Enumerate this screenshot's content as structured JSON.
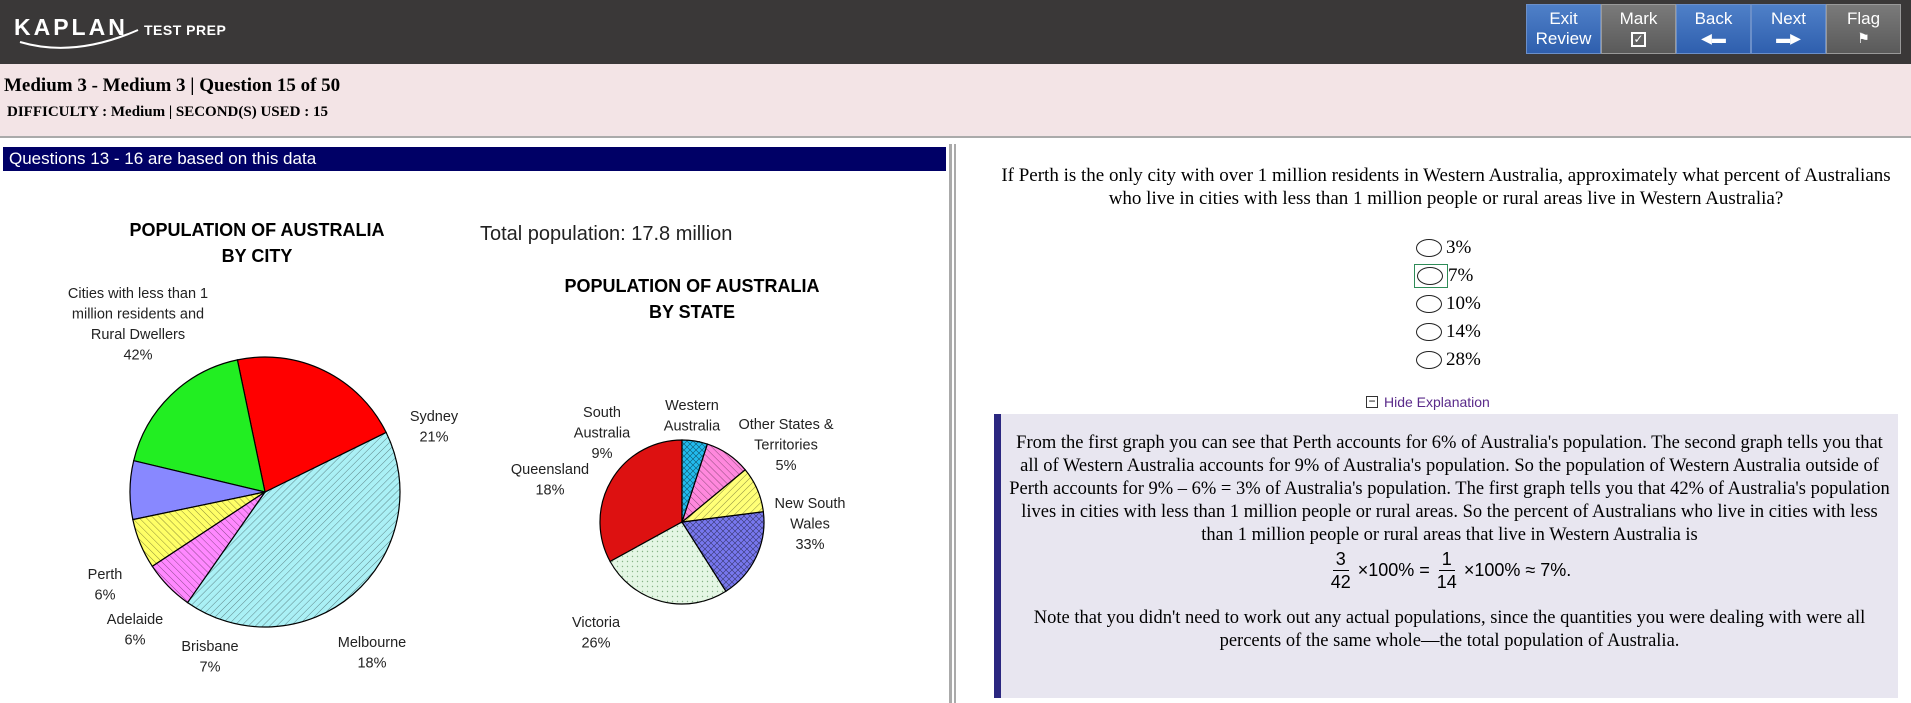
{
  "brand": {
    "logo": "KAPLAN",
    "tagline": "TEST PREP"
  },
  "nav": [
    {
      "line1": "Exit",
      "line2": "Review",
      "icon": ""
    },
    {
      "line1": "Mark",
      "line2": "",
      "icon": "checkbox-icon"
    },
    {
      "line1": "Back",
      "line2": "",
      "icon": "arrow-left-icon"
    },
    {
      "line1": "Next",
      "line2": "",
      "icon": "arrow-right-icon"
    },
    {
      "line1": "Flag",
      "line2": "",
      "icon": "flag-icon"
    }
  ],
  "header": {
    "title": "Medium 3 - Medium 3 | Question  15 of 50",
    "subtitle": "DIFFICULTY : Medium | SECOND(S) USED : 15"
  },
  "banner": "Questions 13 - 16 are based on this data",
  "total_population": "Total population: 17.8 million",
  "chart_data": [
    {
      "type": "pie",
      "title": "POPULATION OF AUSTRALIA BY CITY",
      "title_lines": [
        "POPULATION OF AUSTRALIA",
        "BY CITY"
      ],
      "slices": [
        {
          "label": "Cities with less than 1 million residents and Rural Dwellers",
          "label_lines": [
            "Cities with less than 1",
            "million residents and",
            "Rural Dwellers"
          ],
          "value": 42,
          "pct_label": "42%",
          "color": "#aaf0f5"
        },
        {
          "label": "Sydney",
          "label_lines": [
            "Sydney"
          ],
          "value": 21,
          "pct_label": "21%",
          "color": "#ff0000"
        },
        {
          "label": "Melbourne",
          "label_lines": [
            "Melbourne"
          ],
          "value": 18,
          "pct_label": "18%",
          "color": "#22ee22"
        },
        {
          "label": "Brisbane",
          "label_lines": [
            "Brisbane"
          ],
          "value": 7,
          "pct_label": "7%",
          "color": "#8888ff"
        },
        {
          "label": "Adelaide",
          "label_lines": [
            "Adelaide"
          ],
          "value": 6,
          "pct_label": "6%",
          "color": "#ffff66"
        },
        {
          "label": "Perth",
          "label_lines": [
            "Perth"
          ],
          "value": 6,
          "pct_label": "6%",
          "color": "#ff88ff"
        }
      ]
    },
    {
      "type": "pie",
      "title": "POPULATION OF AUSTRALIA BY STATE",
      "title_lines": [
        "POPULATION OF AUSTRALIA",
        "BY STATE"
      ],
      "slices": [
        {
          "label": "New South Wales",
          "label_lines": [
            "New South",
            "Wales"
          ],
          "value": 33,
          "pct_label": "33%",
          "color": "#dd1111"
        },
        {
          "label": "Victoria",
          "label_lines": [
            "Victoria"
          ],
          "value": 26,
          "pct_label": "26%",
          "color": "#e4f6e4"
        },
        {
          "label": "Queensland",
          "label_lines": [
            "Queensland"
          ],
          "value": 18,
          "pct_label": "18%",
          "color": "#7777ee"
        },
        {
          "label": "South Australia",
          "label_lines": [
            "South",
            "Australia"
          ],
          "value": 9,
          "pct_label": "9%",
          "color": "#ffff77"
        },
        {
          "label": "Western Australia",
          "label_lines": [
            "Western",
            "Australia"
          ],
          "value": 9,
          "pct_label": "9%",
          "color": "#ff88dd"
        },
        {
          "label": "Other States & Territories",
          "label_lines": [
            "Other States &",
            "Territories"
          ],
          "value": 5,
          "pct_label": "5%",
          "color": "#22bbee"
        }
      ]
    }
  ],
  "question": {
    "text": "If Perth is the only city with over 1 million residents in Western Australia, approximately what percent of Australians who live in cities with less than 1 million people or rural areas live in Western Australia?",
    "options": [
      "3%",
      "7%",
      "10%",
      "14%",
      "28%"
    ],
    "focused_option": 1
  },
  "hide_explanation": "Hide Explanation",
  "explanation": {
    "para1": "From the first graph you can see that Perth accounts for 6% of Australia's population. The second graph tells you that all of Western Australia accounts for 9% of Australia's population. So the population of Western Australia outside of Perth accounts for 9% – 6% = 3% of Australia's population. The first graph tells you that 42% of Australia's population lives in cities with less than 1 million people or rural areas. So the percent of Australians who live in cities with less than 1 million people or rural areas that live in Western Australia is",
    "formula": {
      "n1": "3",
      "d1": "42",
      "t1": "×100% =",
      "n2": "1",
      "d2": "14",
      "t2": "×100% ≈ 7%."
    },
    "para2": "Note that you didn't need to work out any actual populations, since the quantities you were dealing with were all percents of the same whole—the total population of Australia."
  }
}
